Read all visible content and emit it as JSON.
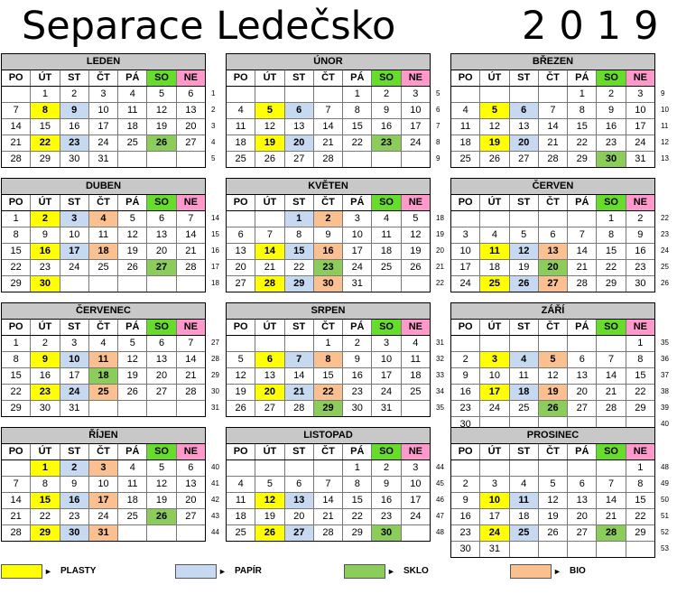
{
  "header": {
    "title": "Separace  Ledečsko",
    "year": "2019"
  },
  "day_names": [
    "PO",
    "ÚT",
    "ST",
    "ČT",
    "PÁ",
    "SO",
    "NE"
  ],
  "colors": {
    "plasty": "#ffff00",
    "papir": "#c6d9f1",
    "sklo": "#8ccc5a",
    "bio": "#fac090",
    "so_header": "#66dd2a",
    "ne_header": "#ff99cc",
    "month_header": "#c8c8c8"
  },
  "legend": [
    {
      "key": "plasty",
      "arrow": "►",
      "label": "PLASTY"
    },
    {
      "key": "papir",
      "arrow": "►",
      "label": "PAPÍR"
    },
    {
      "key": "sklo",
      "arrow": "►",
      "label": "SKLO"
    },
    {
      "key": "bio",
      "arrow": "►",
      "label": "BIO"
    }
  ],
  "months": [
    {
      "name": "LEDEN",
      "days": 31,
      "start": 1,
      "weeks": [
        "1",
        "2",
        "3",
        "4",
        "5"
      ],
      "plasty": [
        8,
        22
      ],
      "papir": [
        9,
        23
      ],
      "sklo": [
        26
      ],
      "bio": []
    },
    {
      "name": "ÚNOR",
      "days": 28,
      "start": 4,
      "weeks": [
        "5",
        "6",
        "7",
        "8",
        "9"
      ],
      "plasty": [
        5,
        19
      ],
      "papir": [
        6,
        20
      ],
      "sklo": [
        23
      ],
      "bio": []
    },
    {
      "name": "BŘEZEN",
      "days": 31,
      "start": 4,
      "weeks": [
        "9",
        "10",
        "11",
        "12",
        "13"
      ],
      "plasty": [
        5,
        19
      ],
      "papir": [
        6,
        20
      ],
      "sklo": [
        30
      ],
      "bio": []
    },
    {
      "name": "DUBEN",
      "days": 30,
      "start": 0,
      "weeks": [
        "14",
        "15",
        "16",
        "17",
        "18"
      ],
      "plasty": [
        2,
        16,
        30
      ],
      "papir": [
        3,
        17
      ],
      "sklo": [
        27
      ],
      "bio": [
        4,
        18
      ]
    },
    {
      "name": "KVĚTEN",
      "days": 31,
      "start": 2,
      "weeks": [
        "18",
        "19",
        "20",
        "21",
        "22"
      ],
      "plasty": [
        14,
        28
      ],
      "papir": [
        1,
        15,
        29
      ],
      "sklo": [
        23
      ],
      "bio": [
        2,
        16,
        30
      ]
    },
    {
      "name": "ČERVEN",
      "days": 30,
      "start": 5,
      "weeks": [
        "22",
        "23",
        "24",
        "25",
        "26"
      ],
      "plasty": [
        11,
        25
      ],
      "papir": [
        12,
        26
      ],
      "sklo": [
        20
      ],
      "bio": [
        13,
        27
      ]
    },
    {
      "name": "ČERVENEC",
      "days": 31,
      "start": 0,
      "weeks": [
        "27",
        "28",
        "29",
        "30",
        "31"
      ],
      "plasty": [
        9,
        23
      ],
      "papir": [
        10,
        24
      ],
      "sklo": [
        18
      ],
      "bio": [
        11,
        25
      ]
    },
    {
      "name": "SRPEN",
      "days": 31,
      "start": 3,
      "weeks": [
        "31",
        "32",
        "33",
        "34",
        "35"
      ],
      "plasty": [
        6,
        20
      ],
      "papir": [
        7,
        21
      ],
      "sklo": [
        29
      ],
      "bio": [
        8,
        22
      ]
    },
    {
      "name": "ZÁŘÍ",
      "days": 30,
      "start": 6,
      "weeks": [
        "35",
        "36",
        "37",
        "38",
        "39",
        "40"
      ],
      "plasty": [
        3,
        17
      ],
      "papir": [
        4,
        18
      ],
      "sklo": [
        26
      ],
      "bio": [
        5,
        19
      ]
    },
    {
      "name": "ŘÍJEN",
      "days": 31,
      "start": 1,
      "weeks": [
        "40",
        "41",
        "42",
        "43",
        "44"
      ],
      "plasty": [
        1,
        15,
        29
      ],
      "papir": [
        2,
        16,
        30
      ],
      "sklo": [
        26
      ],
      "bio": [
        3,
        17,
        31
      ]
    },
    {
      "name": "LISTOPAD",
      "days": 30,
      "start": 4,
      "weeks": [
        "44",
        "45",
        "46",
        "47",
        "48"
      ],
      "plasty": [
        12,
        26
      ],
      "papir": [
        13,
        27
      ],
      "sklo": [
        30
      ],
      "bio": []
    },
    {
      "name": "PROSINEC",
      "days": 31,
      "start": 6,
      "weeks": [
        "48",
        "49",
        "50",
        "51",
        "52",
        "53"
      ],
      "plasty": [
        10,
        24
      ],
      "papir": [
        11,
        25
      ],
      "sklo": [
        28
      ],
      "bio": []
    }
  ]
}
